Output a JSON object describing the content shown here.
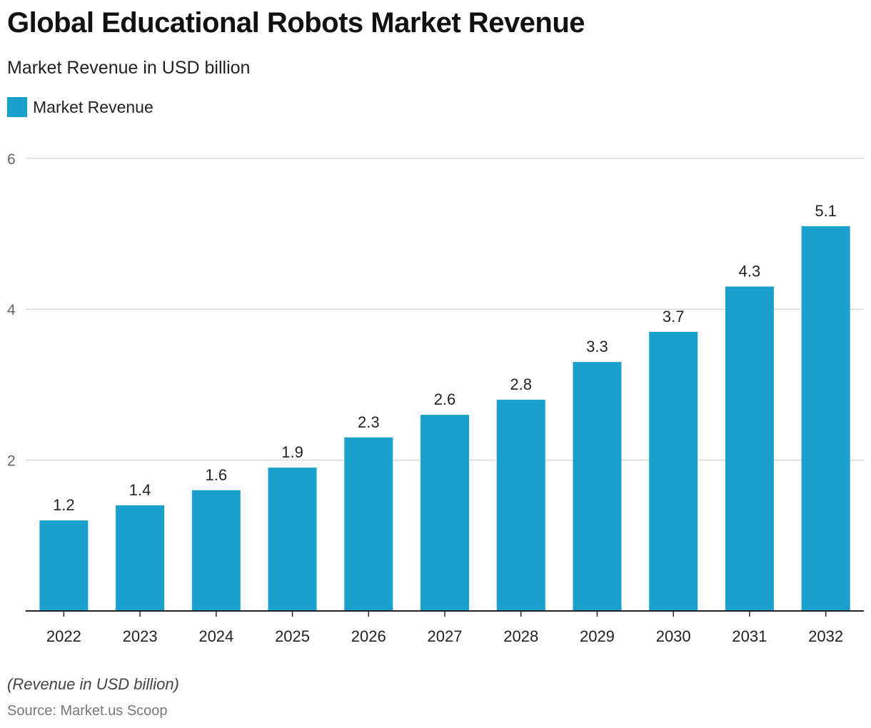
{
  "header": {
    "title": "Global Educational Robots Market Revenue",
    "subtitle": "Market Revenue in USD billion"
  },
  "legend": {
    "items": [
      {
        "label": "Market Revenue",
        "color": "#1aa0cd"
      }
    ]
  },
  "footer": {
    "note": "(Revenue in USD billion)",
    "source": "Source: Market.us Scoop"
  },
  "chart_data": {
    "type": "bar",
    "title": "Global Educational Robots Market Revenue",
    "subtitle": "Market Revenue in USD billion",
    "xlabel": "",
    "ylabel": "",
    "categories": [
      "2022",
      "2023",
      "2024",
      "2025",
      "2026",
      "2027",
      "2028",
      "2029",
      "2030",
      "2031",
      "2032"
    ],
    "series": [
      {
        "name": "Market Revenue",
        "values": [
          1.2,
          1.4,
          1.6,
          1.9,
          2.3,
          2.6,
          2.8,
          3.3,
          3.7,
          4.3,
          5.1
        ],
        "color": "#1aa0cd"
      }
    ],
    "ylim": [
      0,
      6
    ],
    "yticks": [
      2,
      4,
      6
    ],
    "grid": true,
    "legend_position": "top-left",
    "data_labels": true
  }
}
